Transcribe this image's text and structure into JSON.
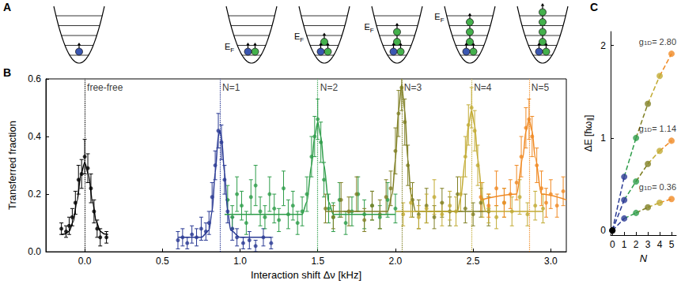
{
  "diagram": {
    "letter": "A",
    "levels": 5,
    "fermi_label": {
      "main": "E",
      "sub": "F"
    },
    "wells": [
      {
        "impurity": 1,
        "majority": 0,
        "fermi_label": false
      },
      {
        "impurity": 1,
        "majority": 1,
        "fermi_label": true
      },
      {
        "impurity": 1,
        "majority": 2,
        "fermi_label": true
      },
      {
        "impurity": 1,
        "majority": 3,
        "fermi_label": true
      },
      {
        "impurity": 1,
        "majority": 4,
        "fermi_label": true
      },
      {
        "impurity": 1,
        "majority": 5,
        "fermi_label": false
      }
    ]
  },
  "chart_data": [
    {
      "panel_label": "B",
      "type": "scatter",
      "marker": "circle",
      "grid": false,
      "x_label": "Interaction shift Δν [kHz]",
      "y_label": "Transferred fraction",
      "xlim": [
        -0.25,
        3.1
      ],
      "xticks": [
        {
          "value": 0,
          "label": "0.0"
        },
        0.5,
        {
          "value": 1,
          "label": "1.0"
        },
        1.5,
        {
          "value": 2,
          "label": "2.0"
        },
        2.5,
        {
          "value": 3,
          "label": "3.0"
        }
      ],
      "ylim": [
        0,
        0.6
      ],
      "yticks": [
        {
          "value": 0,
          "label": "0.0"
        },
        0.2,
        0.4,
        0.6
      ],
      "series": [
        {
          "name": "free-free",
          "color": "#000000",
          "peak": 0.0,
          "x": [
            -0.15,
            -0.12,
            -0.1,
            -0.08,
            -0.06,
            -0.04,
            -0.02,
            0.0,
            0.02,
            0.04,
            0.06,
            0.08,
            0.1,
            0.14
          ],
          "values": [
            0.08,
            0.07,
            0.09,
            0.12,
            0.17,
            0.25,
            0.27,
            0.33,
            0.29,
            0.22,
            0.14,
            0.08,
            0.05,
            0.05
          ],
          "errors": [
            0.02,
            0.02,
            0.03,
            0.03,
            0.04,
            0.05,
            0.05,
            0.06,
            0.05,
            0.05,
            0.04,
            0.03,
            0.03,
            0.02
          ],
          "fit_x": [
            -0.15,
            -0.125,
            -0.1,
            -0.075,
            -0.05,
            -0.025,
            0,
            0.025,
            0.05,
            0.075,
            0.1,
            0.125,
            0.15
          ],
          "fit_values": [
            0.06,
            0.062,
            0.071,
            0.103,
            0.175,
            0.266,
            0.31,
            0.266,
            0.175,
            0.103,
            0.071,
            0.062,
            0.06
          ]
        },
        {
          "name": "N=1",
          "color": "#2a3a94",
          "peak": 0.87,
          "x": [
            0.6,
            0.63,
            0.66,
            0.69,
            0.72,
            0.75,
            0.78,
            0.8,
            0.82,
            0.84,
            0.86,
            0.88,
            0.9,
            0.92,
            0.95,
            0.98,
            1.02,
            1.06,
            1.1,
            1.15,
            1.2
          ],
          "values": [
            0.04,
            0.05,
            0.03,
            0.06,
            0.05,
            0.08,
            0.07,
            0.1,
            0.19,
            0.3,
            0.42,
            0.38,
            0.25,
            0.14,
            0.08,
            0.05,
            0.03,
            0.04,
            0.02,
            0.05,
            0.03
          ],
          "errors": [
            0.03,
            0.03,
            0.02,
            0.03,
            0.03,
            0.04,
            0.03,
            0.04,
            0.05,
            0.05,
            0.06,
            0.06,
            0.05,
            0.04,
            0.04,
            0.03,
            0.02,
            0.03,
            0.02,
            0.03,
            0.02
          ],
          "fit_x": [
            0.6,
            0.75,
            0.8,
            0.82,
            0.84,
            0.86,
            0.87,
            0.88,
            0.9,
            0.92,
            0.94,
            1.0,
            1.2
          ],
          "fit_values": [
            0.05,
            0.05,
            0.074,
            0.14,
            0.275,
            0.4,
            0.42,
            0.4,
            0.275,
            0.14,
            0.074,
            0.05,
            0.05
          ]
        },
        {
          "name": "N=2",
          "color": "#2e9d4a",
          "peak": 1.5,
          "x": [
            0.92,
            0.95,
            0.98,
            1.01,
            1.04,
            1.07,
            1.1,
            1.13,
            1.16,
            1.19,
            1.22,
            1.25,
            1.28,
            1.31,
            1.34,
            1.37,
            1.4,
            1.43,
            1.46,
            1.48,
            1.5,
            1.52,
            1.54,
            1.57,
            1.6,
            1.64,
            1.68,
            1.72,
            1.76,
            1.8,
            1.85,
            1.9,
            1.95,
            2.0
          ],
          "values": [
            0.18,
            0.12,
            0.2,
            0.16,
            0.1,
            0.19,
            0.23,
            0.14,
            0.12,
            0.2,
            0.15,
            0.11,
            0.22,
            0.13,
            0.16,
            0.1,
            0.14,
            0.2,
            0.33,
            0.4,
            0.46,
            0.38,
            0.25,
            0.15,
            0.12,
            0.18,
            0.1,
            0.14,
            0.2,
            0.13,
            0.16,
            0.12,
            0.18,
            0.15
          ],
          "errors": [
            0.05,
            0.04,
            0.06,
            0.05,
            0.04,
            0.06,
            0.07,
            0.05,
            0.04,
            0.06,
            0.05,
            0.04,
            0.06,
            0.05,
            0.05,
            0.04,
            0.05,
            0.06,
            0.07,
            0.07,
            0.07,
            0.07,
            0.06,
            0.05,
            0.05,
            0.06,
            0.04,
            0.05,
            0.06,
            0.05,
            0.05,
            0.04,
            0.06,
            0.05
          ],
          "fit_x": [
            0.9,
            1.4,
            1.43,
            1.46,
            1.48,
            1.5,
            1.52,
            1.54,
            1.57,
            1.6,
            2.0
          ],
          "fit_values": [
            0.13,
            0.13,
            0.173,
            0.3,
            0.4,
            0.45,
            0.4,
            0.3,
            0.173,
            0.13,
            0.13
          ]
        },
        {
          "name": "N=3",
          "color": "#7f7f24",
          "peak": 2.04,
          "x": [
            1.55,
            1.6,
            1.65,
            1.7,
            1.75,
            1.8,
            1.85,
            1.9,
            1.94,
            1.97,
            2.0,
            2.02,
            2.04,
            2.06,
            2.08,
            2.11,
            2.15,
            2.2,
            2.25,
            2.3,
            2.35,
            2.4,
            2.45,
            2.5,
            2.55,
            2.6
          ],
          "values": [
            0.15,
            0.12,
            0.18,
            0.14,
            0.2,
            0.11,
            0.16,
            0.13,
            0.19,
            0.22,
            0.35,
            0.48,
            0.57,
            0.45,
            0.3,
            0.18,
            0.13,
            0.16,
            0.12,
            0.17,
            0.14,
            0.2,
            0.15,
            0.13,
            0.17,
            0.14
          ],
          "errors": [
            0.05,
            0.04,
            0.06,
            0.05,
            0.06,
            0.04,
            0.05,
            0.05,
            0.06,
            0.06,
            0.08,
            0.08,
            0.08,
            0.08,
            0.07,
            0.06,
            0.05,
            0.06,
            0.04,
            0.05,
            0.05,
            0.06,
            0.05,
            0.04,
            0.05,
            0.05
          ],
          "fit_x": [
            1.55,
            1.95,
            1.98,
            2.0,
            2.02,
            2.04,
            2.06,
            2.08,
            2.1,
            2.13,
            2.6
          ],
          "fit_values": [
            0.14,
            0.14,
            0.2,
            0.32,
            0.49,
            0.58,
            0.49,
            0.32,
            0.2,
            0.14,
            0.14
          ]
        },
        {
          "name": "N=4",
          "color": "#c2ab34",
          "peak": 2.49,
          "x": [
            2.05,
            2.1,
            2.15,
            2.2,
            2.25,
            2.3,
            2.35,
            2.39,
            2.42,
            2.45,
            2.47,
            2.49,
            2.51,
            2.53,
            2.56,
            2.6,
            2.65,
            2.7,
            2.75,
            2.8,
            2.85,
            2.9,
            2.95
          ],
          "values": [
            0.13,
            0.17,
            0.12,
            0.15,
            0.19,
            0.13,
            0.16,
            0.14,
            0.2,
            0.33,
            0.44,
            0.5,
            0.42,
            0.3,
            0.18,
            0.15,
            0.12,
            0.17,
            0.14,
            0.19,
            0.13,
            0.16,
            0.15
          ],
          "errors": [
            0.04,
            0.05,
            0.04,
            0.05,
            0.06,
            0.04,
            0.05,
            0.05,
            0.06,
            0.07,
            0.07,
            0.07,
            0.07,
            0.07,
            0.06,
            0.05,
            0.04,
            0.05,
            0.05,
            0.06,
            0.04,
            0.05,
            0.05
          ],
          "fit_x": [
            2.0,
            2.4,
            2.42,
            2.45,
            2.47,
            2.49,
            2.51,
            2.53,
            2.56,
            2.58,
            2.95
          ],
          "fit_values": [
            0.14,
            0.14,
            0.187,
            0.322,
            0.44,
            0.49,
            0.44,
            0.322,
            0.187,
            0.14,
            0.14
          ]
        },
        {
          "name": "N=5",
          "color": "#f08a24",
          "peak": 2.86,
          "x": [
            2.55,
            2.6,
            2.65,
            2.7,
            2.74,
            2.78,
            2.81,
            2.84,
            2.86,
            2.88,
            2.91,
            2.94,
            2.97,
            3.0,
            3.04,
            3.08
          ],
          "values": [
            0.19,
            0.16,
            0.22,
            0.17,
            0.2,
            0.24,
            0.33,
            0.43,
            0.46,
            0.4,
            0.3,
            0.22,
            0.17,
            0.2,
            0.16,
            0.21
          ],
          "errors": [
            0.05,
            0.04,
            0.06,
            0.05,
            0.05,
            0.06,
            0.07,
            0.07,
            0.07,
            0.07,
            0.06,
            0.06,
            0.05,
            0.05,
            0.04,
            0.05
          ],
          "fit_x": [
            2.55,
            2.78,
            2.82,
            2.84,
            2.86,
            2.88,
            2.9,
            2.94,
            3.1
          ],
          "fit_values": [
            0.18,
            0.2,
            0.326,
            0.418,
            0.46,
            0.418,
            0.326,
            0.2,
            0.18
          ]
        }
      ]
    },
    {
      "panel_label": "C",
      "type": "line",
      "marker": "circle",
      "line_style": "dashed",
      "grid": false,
      "x_label": "N",
      "y_label": {
        "text": "ΔE [ħω",
        "sub": "∥",
        "after": "]"
      },
      "xlim": [
        -0.15,
        5.4
      ],
      "xticks": [
        0,
        1,
        2,
        3,
        4,
        5
      ],
      "ylim": [
        -0.05,
        2.15
      ],
      "yticks": [
        0,
        1,
        2
      ],
      "x": [
        0,
        1,
        2,
        3,
        4,
        5
      ],
      "series": [
        {
          "label": {
            "text": "g",
            "sub": "1D",
            "after": "= 2.80"
          },
          "colors": [
            "#000000",
            "#2a3a94",
            "#2e9d4a",
            "#7f7f24",
            "#c2ab34",
            "#f08a24"
          ],
          "values": [
            0,
            0.58,
            1.0,
            1.37,
            1.67,
            1.91
          ]
        },
        {
          "label": {
            "text": "g",
            "sub": "1D",
            "after": "= 1.14"
          },
          "colors": [
            "#000000",
            "#2a3a94",
            "#2e9d4a",
            "#7f7f24",
            "#c2ab34",
            "#f08a24"
          ],
          "values": [
            0,
            0.33,
            0.53,
            0.72,
            0.86,
            0.97
          ]
        },
        {
          "label": {
            "text": "g",
            "sub": "1D",
            "after": "= 0.36"
          },
          "colors": [
            "#000000",
            "#2a3a94",
            "#2e9d4a",
            "#7f7f24",
            "#c2ab34",
            "#f08a24"
          ],
          "values": [
            0,
            0.13,
            0.19,
            0.25,
            0.3,
            0.34
          ]
        }
      ]
    }
  ]
}
